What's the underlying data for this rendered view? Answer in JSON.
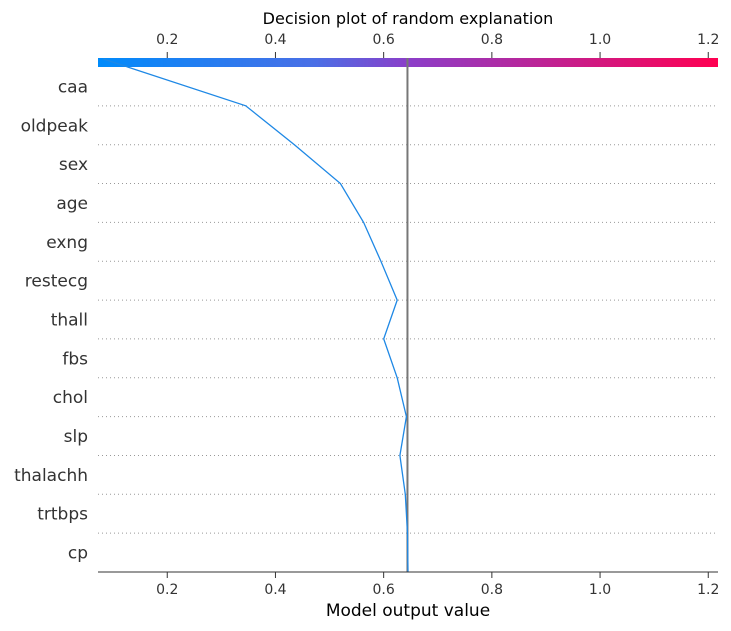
{
  "chart_data": {
    "type": "line",
    "title": "Decision plot of random explanation",
    "xlabel": "Model output value",
    "xlim": [
      0.072,
      1.218
    ],
    "xticks": [
      "0.2",
      "0.4",
      "0.6",
      "0.8",
      "1.0",
      "1.2"
    ],
    "xtick_values": [
      0.2,
      0.4,
      0.6,
      0.8,
      1.0,
      1.2
    ],
    "base_value": 0.644,
    "features": [
      "caa",
      "oldpeak",
      "sex",
      "age",
      "exng",
      "restecg",
      "thall",
      "fbs",
      "chol",
      "slp",
      "thalachh",
      "trtbps",
      "cp"
    ],
    "path_values": [
      0.082,
      0.345,
      0.435,
      0.52,
      0.563,
      0.595,
      0.625,
      0.6,
      0.625,
      0.642,
      0.63,
      0.64,
      0.644,
      0.645
    ],
    "colorbar": {
      "low_color": "#008bfb",
      "mid_color": "#8b3ec9",
      "high_color": "#ff0051"
    },
    "line_color": "#1e88e5",
    "base_line_color": "#777777",
    "grid": "dotted"
  }
}
